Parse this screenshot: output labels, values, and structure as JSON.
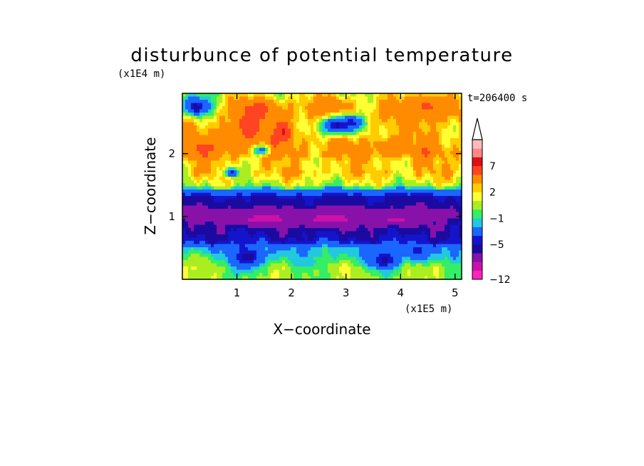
{
  "chart_data": {
    "type": "heatmap",
    "title": "disturbunce of potential temperature",
    "xlabel": "X−coordinate",
    "ylabel": "Z−coordinate",
    "x_scale_label": "(x1E5 m)",
    "y_scale_label": "(x1E4 m)",
    "time_label": "t=206400 s",
    "xlim": [
      0,
      5.12
    ],
    "ylim": [
      0,
      2.96
    ],
    "x_ticks": [
      {
        "value": 1,
        "label": "1"
      },
      {
        "value": 2,
        "label": "2"
      },
      {
        "value": 3,
        "label": "3"
      },
      {
        "value": 4,
        "label": "4"
      },
      {
        "value": 5,
        "label": "5"
      }
    ],
    "y_ticks": [
      {
        "value": 1,
        "label": "1"
      },
      {
        "value": 2,
        "label": "2"
      }
    ],
    "colorbar": {
      "levels": [
        -12,
        -10,
        -8,
        -6,
        -5,
        -4,
        -2,
        -1,
        0,
        1,
        2,
        3,
        5,
        7,
        8,
        10,
        12
      ],
      "colors": [
        "#ff22bb",
        "#cc11aa",
        "#8811aa",
        "#1a0aa0",
        "#1414cc",
        "#1a66ff",
        "#22c8dd",
        "#33ee66",
        "#aaee22",
        "#ffff33",
        "#ffcc00",
        "#ff8c00",
        "#ff4422",
        "#dd1111",
        "#ff8888",
        "#ffbbbb"
      ],
      "extend_max": true,
      "tick_labels": [
        {
          "value": 7,
          "label": "7"
        },
        {
          "value": 2,
          "label": "2"
        },
        {
          "value": -1,
          "label": "−1"
        },
        {
          "value": -5,
          "label": "−5"
        },
        {
          "value": -12,
          "label": "−12"
        }
      ]
    },
    "profile": [
      {
        "z": 0.0,
        "value": 0.3
      },
      {
        "z": 0.2,
        "value": 0.5
      },
      {
        "z": 0.35,
        "value": -1.2
      },
      {
        "z": 0.5,
        "value": -2.0
      },
      {
        "z": 0.6,
        "value": -4.6
      },
      {
        "z": 0.75,
        "value": -5.3
      },
      {
        "z": 0.9,
        "value": -5.6
      },
      {
        "z": 1.0,
        "value": -6.5
      },
      {
        "z": 1.1,
        "value": -6.4
      },
      {
        "z": 1.2,
        "value": -5.5
      },
      {
        "z": 1.3,
        "value": -5.1
      },
      {
        "z": 1.4,
        "value": -3.0
      },
      {
        "z": 1.5,
        "value": 0.6
      },
      {
        "z": 1.6,
        "value": 1.6
      },
      {
        "z": 1.7,
        "value": 2.5
      },
      {
        "z": 1.85,
        "value": 2.2
      },
      {
        "z": 2.0,
        "value": 3.5
      },
      {
        "z": 2.2,
        "value": 3.0
      },
      {
        "z": 2.4,
        "value": 2.6
      },
      {
        "z": 2.6,
        "value": 3.2
      },
      {
        "z": 2.8,
        "value": 2.4
      },
      {
        "z": 2.96,
        "value": 1.2
      }
    ],
    "features": [
      {
        "x": 1.2,
        "z": 2.42,
        "rx": 0.22,
        "rz": 0.2,
        "value": 7.5
      },
      {
        "x": 1.85,
        "z": 2.35,
        "rx": 0.18,
        "rz": 0.18,
        "value": 7.2
      },
      {
        "x": 1.4,
        "z": 2.7,
        "rx": 0.4,
        "rz": 0.18,
        "value": 5.5
      },
      {
        "x": 0.4,
        "z": 2.1,
        "rx": 0.35,
        "rz": 0.15,
        "value": 5.3
      },
      {
        "x": 0.9,
        "z": 2.3,
        "rx": 0.3,
        "rz": 0.2,
        "value": 4.2
      },
      {
        "x": 2.7,
        "z": 2.75,
        "rx": 0.35,
        "rz": 0.15,
        "value": 5.0
      },
      {
        "x": 4.5,
        "z": 2.75,
        "rx": 0.5,
        "rz": 0.2,
        "value": 5.2
      },
      {
        "x": 3.8,
        "z": 2.1,
        "rx": 0.3,
        "rz": 0.15,
        "value": 4.0
      },
      {
        "x": 2.85,
        "z": 2.45,
        "rx": 0.35,
        "rz": 0.15,
        "value": -5.4
      },
      {
        "x": 3.1,
        "z": 2.5,
        "rx": 0.2,
        "rz": 0.12,
        "value": -4.5
      },
      {
        "x": 0.25,
        "z": 2.75,
        "rx": 0.3,
        "rz": 0.18,
        "value": -5.3
      },
      {
        "x": 0.9,
        "z": 1.7,
        "rx": 0.15,
        "rz": 0.08,
        "value": -4.5
      },
      {
        "x": 1.45,
        "z": 2.05,
        "rx": 0.15,
        "rz": 0.08,
        "value": -3.0
      },
      {
        "x": 1.5,
        "z": 0.95,
        "rx": 0.6,
        "rz": 0.1,
        "value": -8.6
      },
      {
        "x": 2.7,
        "z": 0.95,
        "rx": 0.55,
        "rz": 0.12,
        "value": -8.6
      },
      {
        "x": 3.9,
        "z": 0.95,
        "rx": 0.45,
        "rz": 0.1,
        "value": -8.3
      },
      {
        "x": 1.2,
        "z": 0.35,
        "rx": 0.3,
        "rz": 0.2,
        "value": -5.5
      },
      {
        "x": 3.7,
        "z": 0.3,
        "rx": 0.3,
        "rz": 0.15,
        "value": -5.3
      },
      {
        "x": 4.3,
        "z": 0.45,
        "rx": 0.2,
        "rz": 0.15,
        "value": -4.5
      },
      {
        "x": 0.3,
        "z": 0.3,
        "rx": 0.25,
        "rz": 0.12,
        "value": 0.6
      },
      {
        "x": 2.3,
        "z": 0.25,
        "rx": 0.25,
        "rz": 0.1,
        "value": -1.5
      }
    ]
  }
}
